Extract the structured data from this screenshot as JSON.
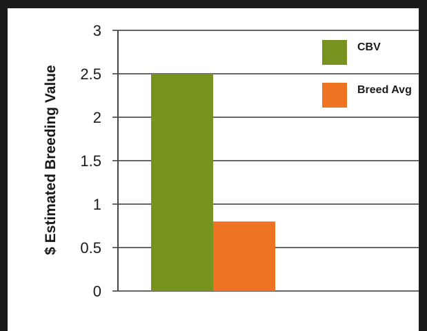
{
  "chart_data": {
    "type": "bar",
    "title": "",
    "xlabel": "",
    "ylabel": "$ Estimated Breeding Value",
    "ylim": [
      0,
      3
    ],
    "yticks": [
      0,
      0.5,
      1,
      1.5,
      2,
      2.5,
      3
    ],
    "ytick_labels": [
      "0",
      "0.5",
      "1",
      "1.5",
      "2",
      "2.5",
      "3"
    ],
    "grid": true,
    "legend_position": "top-right",
    "series": [
      {
        "name": "CBV",
        "values": [
          2.5
        ],
        "color": "#77921f"
      },
      {
        "name": "Breed Avg",
        "values": [
          0.8
        ],
        "color": "#ee7424"
      }
    ]
  }
}
